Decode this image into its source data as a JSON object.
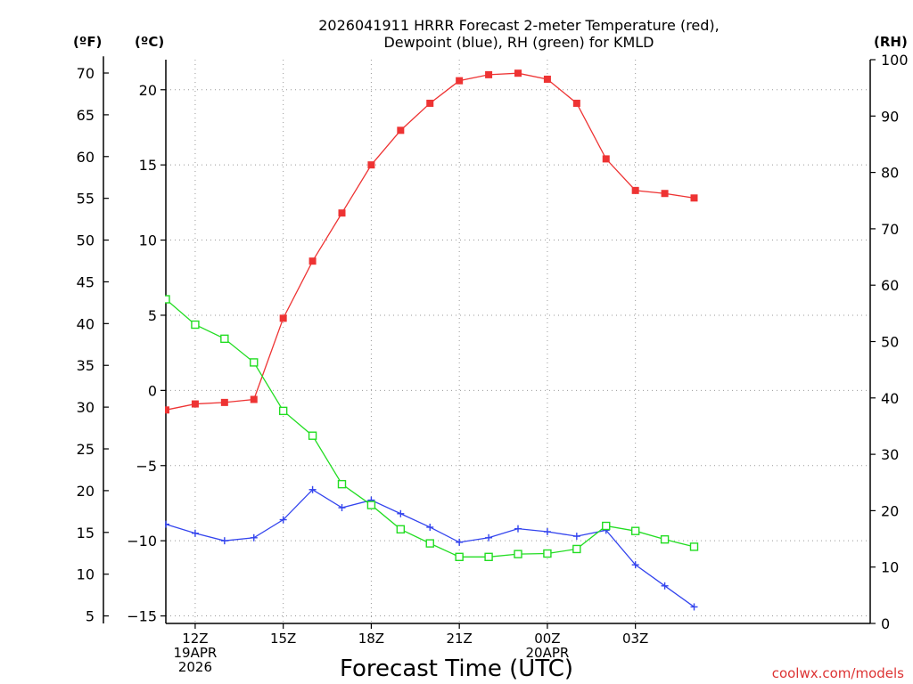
{
  "chart_data": {
    "type": "line",
    "title_line1": "2026041911 HRRR Forecast 2-meter Temperature (red),",
    "title_line2": "Dewpoint (blue), RH (green) for KMLD",
    "xlabel": "Forecast Time (UTC)",
    "credit": "coolwx.com/models",
    "unit_labels": {
      "fahrenheit": "(ºF)",
      "celsius": "(ºC)",
      "rh": "(RH)"
    },
    "x_range": [
      11,
      35
    ],
    "celsius_range": [
      -15.5,
      22
    ],
    "rh_range": [
      0,
      100
    ],
    "x_ticks": [
      {
        "x": 12,
        "line1": "12Z",
        "line2": "19APR",
        "line3": "2026"
      },
      {
        "x": 15,
        "line1": "15Z",
        "line2": "",
        "line3": ""
      },
      {
        "x": 18,
        "line1": "18Z",
        "line2": "",
        "line3": ""
      },
      {
        "x": 21,
        "line1": "21Z",
        "line2": "",
        "line3": ""
      },
      {
        "x": 24,
        "line1": "00Z",
        "line2": "20APR",
        "line3": ""
      },
      {
        "x": 27,
        "line1": "03Z",
        "line2": "",
        "line3": ""
      }
    ],
    "celsius_ticks": [
      {
        "v": 20,
        "label": "20"
      },
      {
        "v": 15,
        "label": "15"
      },
      {
        "v": 10,
        "label": "10"
      },
      {
        "v": 5,
        "label": "5"
      },
      {
        "v": 0,
        "label": "0"
      },
      {
        "v": -5,
        "label": "−5"
      },
      {
        "v": -10,
        "label": "−10"
      },
      {
        "v": -15,
        "label": "−15"
      }
    ],
    "fahrenheit_ticks": [
      {
        "v": 70,
        "label": "70"
      },
      {
        "v": 65,
        "label": "65"
      },
      {
        "v": 60,
        "label": "60"
      },
      {
        "v": 55,
        "label": "55"
      },
      {
        "v": 50,
        "label": "50"
      },
      {
        "v": 45,
        "label": "45"
      },
      {
        "v": 40,
        "label": "40"
      },
      {
        "v": 35,
        "label": "35"
      },
      {
        "v": 30,
        "label": "30"
      },
      {
        "v": 25,
        "label": "25"
      },
      {
        "v": 20,
        "label": "20"
      },
      {
        "v": 15,
        "label": "15"
      },
      {
        "v": 10,
        "label": "10"
      },
      {
        "v": 5,
        "label": "5"
      }
    ],
    "rh_ticks": [
      {
        "v": 100,
        "label": "100"
      },
      {
        "v": 90,
        "label": "90"
      },
      {
        "v": 80,
        "label": "80"
      },
      {
        "v": 70,
        "label": "70"
      },
      {
        "v": 60,
        "label": "60"
      },
      {
        "v": 50,
        "label": "50"
      },
      {
        "v": 40,
        "label": "40"
      },
      {
        "v": 30,
        "label": "30"
      },
      {
        "v": 20,
        "label": "20"
      },
      {
        "v": 10,
        "label": "10"
      },
      {
        "v": 0,
        "label": "0"
      }
    ],
    "x": [
      11,
      12,
      13,
      14,
      15,
      16,
      17,
      18,
      19,
      20,
      21,
      22,
      23,
      24,
      25,
      26,
      27,
      28,
      29
    ],
    "series": [
      {
        "name": "Temperature",
        "color": "#ee3333",
        "axis": "celsius",
        "marker": "square-filled",
        "values": [
          -1.3,
          -0.9,
          -0.8,
          -0.6,
          4.8,
          8.6,
          11.8,
          15.0,
          17.3,
          19.1,
          20.6,
          21.0,
          21.1,
          20.7,
          19.1,
          15.4,
          13.3,
          13.1,
          12.8
        ]
      },
      {
        "name": "Dewpoint",
        "color": "#3344ee",
        "axis": "celsius",
        "marker": "plus",
        "values": [
          -8.9,
          -9.5,
          -10.0,
          -9.8,
          -8.6,
          -6.6,
          -7.8,
          -7.3,
          -8.2,
          -9.1,
          -10.1,
          -9.8,
          -9.2,
          -9.4,
          -9.7,
          -9.3,
          -11.6,
          -13.0,
          -14.4
        ]
      },
      {
        "name": "RH",
        "color": "#22dd22",
        "axis": "rh",
        "marker": "square-open",
        "values": [
          57.5,
          53.0,
          50.5,
          46.3,
          37.7,
          33.3,
          24.7,
          21.0,
          16.7,
          14.2,
          11.8,
          11.8,
          12.3,
          12.4,
          13.2,
          17.3,
          16.4,
          14.9,
          13.6
        ]
      }
    ]
  }
}
